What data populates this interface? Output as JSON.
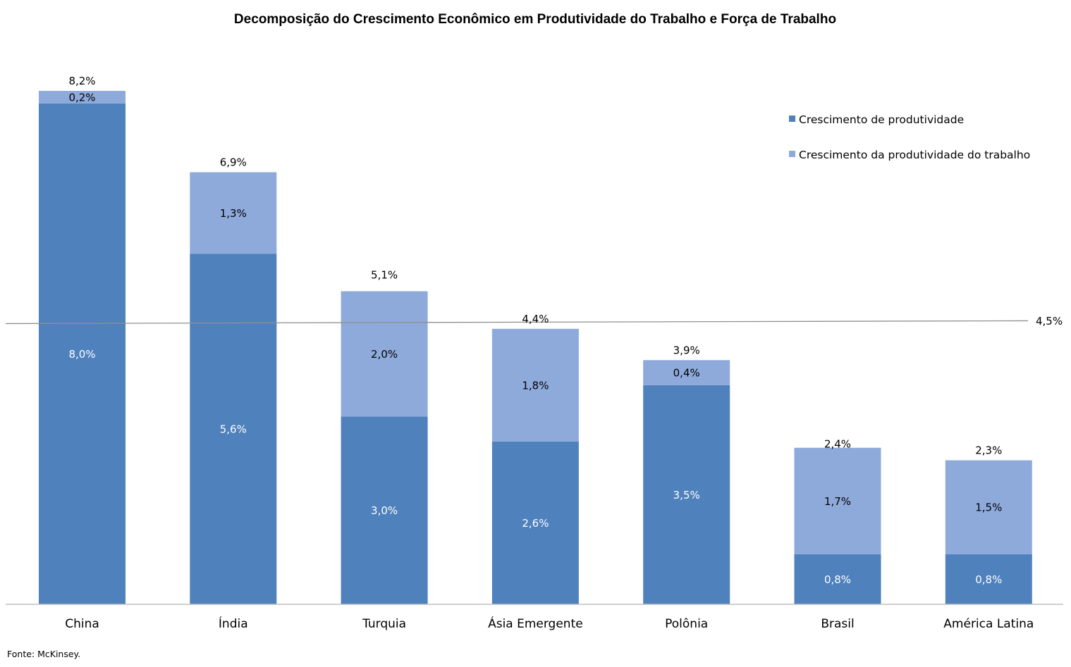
{
  "chart_data": {
    "type": "bar",
    "stacked": true,
    "title": "Decomposição do Crescimento Econômico em Produtividade do Trabalho e Força de Trabalho",
    "xlabel": "",
    "ylabel": "",
    "ylim": [
      0,
      8.2
    ],
    "grid": false,
    "legend_position": "top-right",
    "categories": [
      "China",
      "Índia",
      "Turquia",
      "Ásia Emergente",
      "Polônia",
      "Brasil",
      "América Latina"
    ],
    "series": [
      {
        "name": "Crescimento de produtividade",
        "color": "#4f81bd",
        "label_color": "#ffffff",
        "values": [
          8.0,
          5.6,
          3.0,
          2.6,
          3.5,
          0.8,
          0.8
        ],
        "labels": [
          "8,0%",
          "5,6%",
          "3,0%",
          "2,6%",
          "3,5%",
          "0,8%",
          "0,8%"
        ]
      },
      {
        "name": "Crescimento da produtividade do trabalho",
        "color": "#8eaadb",
        "label_color": "#000000",
        "values": [
          0.2,
          1.3,
          2.0,
          1.8,
          0.4,
          1.7,
          1.5
        ],
        "labels": [
          "0,2%",
          "1,3%",
          "2,0%",
          "1,8%",
          "0,4%",
          "1,7%",
          "1,5%"
        ]
      }
    ],
    "totals": [
      8.2,
      6.9,
      5.1,
      4.4,
      3.9,
      2.4,
      2.3
    ],
    "total_labels": [
      "8,2%",
      "6,9%",
      "5,1%",
      "4,4%",
      "3,9%",
      "2,4%",
      "2,3%"
    ],
    "reference_line": {
      "value": 4.5,
      "label": "4,5%",
      "color": "#909090"
    },
    "source": "Fonte: McKinsey."
  }
}
